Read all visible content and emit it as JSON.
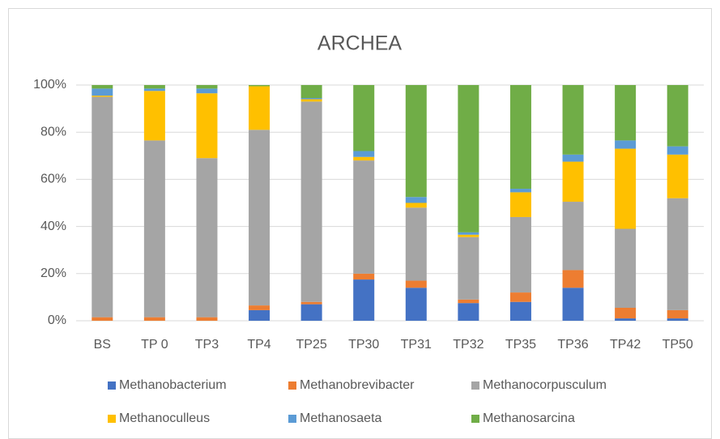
{
  "chart_data": {
    "type": "stacked_bar",
    "title": "ARCHEA",
    "categories": [
      "BS",
      "TP 0",
      "TP3",
      "TP4",
      "TP25",
      "TP30",
      "TP31",
      "TP32",
      "TP35",
      "TP36",
      "TP42",
      "TP50"
    ],
    "series": [
      {
        "name": "Methanobacterium",
        "color": "#4472c4",
        "values": [
          0,
          0,
          0,
          4.5,
          7,
          17.5,
          14,
          7.5,
          8,
          14,
          1,
          1
        ]
      },
      {
        "name": "Methanobrevibacter",
        "color": "#ed7d31",
        "values": [
          1.5,
          1.5,
          1.5,
          2,
          1,
          2.5,
          3,
          1.5,
          4,
          7.5,
          4.5,
          3.5
        ]
      },
      {
        "name": "Methanocorpusculum",
        "color": "#a5a5a5",
        "values": [
          93.5,
          75,
          67.5,
          74.5,
          85,
          48,
          31,
          26.5,
          32,
          29,
          33.5,
          47.5
        ]
      },
      {
        "name": "Methanoculleus",
        "color": "#ffc000",
        "values": [
          0.5,
          21,
          27.5,
          18.5,
          1,
          1.5,
          2,
          1,
          10.5,
          17,
          34,
          18.5
        ]
      },
      {
        "name": "Methanosaeta",
        "color": "#5b9bd5",
        "values": [
          3,
          1,
          2,
          0,
          0.5,
          2.5,
          2.5,
          1,
          1.5,
          3,
          3.5,
          3.5
        ]
      },
      {
        "name": "Methanosarcina",
        "color": "#70ad47",
        "values": [
          1.5,
          1.5,
          1.5,
          0.5,
          5.5,
          28,
          47.5,
          62.5,
          44,
          29.5,
          23.5,
          26
        ]
      }
    ],
    "ylim": [
      0,
      100
    ],
    "yticks": [
      {
        "value": 0,
        "label": "0%"
      },
      {
        "value": 20,
        "label": "20%"
      },
      {
        "value": 40,
        "label": "40%"
      },
      {
        "value": 60,
        "label": "60%"
      },
      {
        "value": 80,
        "label": "80%"
      },
      {
        "value": 100,
        "label": "100%"
      }
    ],
    "grid": true
  }
}
